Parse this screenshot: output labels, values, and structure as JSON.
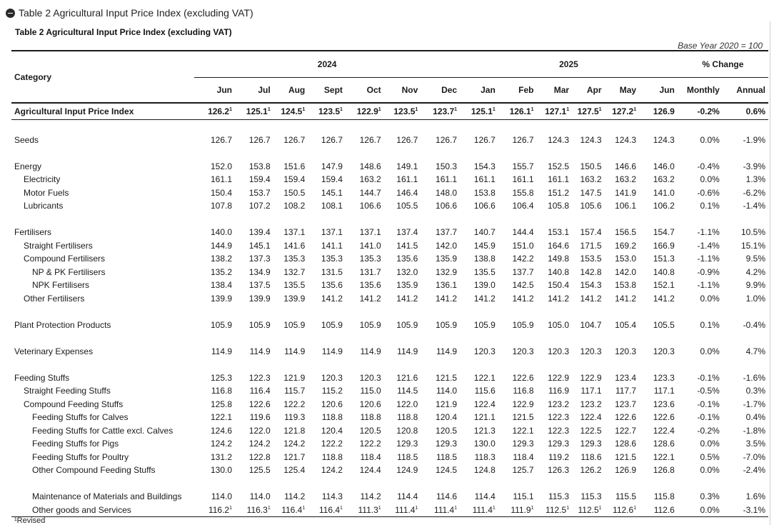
{
  "panel_title": "Table 2 Agricultural Input Price Index (excluding VAT)",
  "table_title": "Table 2 Agricultural Input Price Index (excluding VAT)",
  "base_year": "Base Year 2020 = 100",
  "header": {
    "category": "Category",
    "year_2024": "2024",
    "year_2025": "2025",
    "pct_change": "% Change",
    "months": [
      "Jun",
      "Jul",
      "Aug",
      "Sept",
      "Oct",
      "Nov",
      "Dec",
      "Jan",
      "Feb",
      "Mar",
      "Apr",
      "May",
      "Jun"
    ],
    "monthly": "Monthly",
    "annual": "Annual"
  },
  "rows": [
    {
      "label": "Agricultural Input Price Index",
      "level": 0,
      "type": "top",
      "values": [
        "126.2¹",
        "125.1¹",
        "124.5¹",
        "123.5¹",
        "122.9¹",
        "123.5¹",
        "123.7¹",
        "125.1¹",
        "126.1¹",
        "127.1¹",
        "127.5¹",
        "127.2¹",
        "126.9"
      ],
      "monthly": "-0.2%",
      "annual": "0.6%"
    },
    {
      "type": "gap"
    },
    {
      "label": "Seeds",
      "level": 0,
      "values": [
        "126.7",
        "126.7",
        "126.7",
        "126.7",
        "126.7",
        "126.7",
        "126.7",
        "126.7",
        "126.7",
        "124.3",
        "124.3",
        "124.3",
        "124.3"
      ],
      "monthly": "0.0%",
      "annual": "-1.9%"
    },
    {
      "type": "gap"
    },
    {
      "label": "Energy",
      "level": 0,
      "values": [
        "152.0",
        "153.8",
        "151.6",
        "147.9",
        "148.6",
        "149.1",
        "150.3",
        "154.3",
        "155.7",
        "152.5",
        "150.5",
        "146.6",
        "146.0"
      ],
      "monthly": "-0.4%",
      "annual": "-3.9%"
    },
    {
      "label": "Electricity",
      "level": 1,
      "values": [
        "161.1",
        "159.4",
        "159.4",
        "159.4",
        "163.2",
        "161.1",
        "161.1",
        "161.1",
        "161.1",
        "161.1",
        "163.2",
        "163.2",
        "163.2"
      ],
      "monthly": "0.0%",
      "annual": "1.3%"
    },
    {
      "label": "Motor Fuels",
      "level": 1,
      "values": [
        "150.4",
        "153.7",
        "150.5",
        "145.1",
        "144.7",
        "146.4",
        "148.0",
        "153.8",
        "155.8",
        "151.2",
        "147.5",
        "141.9",
        "141.0"
      ],
      "monthly": "-0.6%",
      "annual": "-6.2%"
    },
    {
      "label": "Lubricants",
      "level": 1,
      "values": [
        "107.8",
        "107.2",
        "108.2",
        "108.1",
        "106.6",
        "105.5",
        "106.6",
        "106.6",
        "106.4",
        "105.8",
        "105.6",
        "106.1",
        "106.2"
      ],
      "monthly": "0.1%",
      "annual": "-1.4%"
    },
    {
      "type": "gap"
    },
    {
      "label": "Fertilisers",
      "level": 0,
      "values": [
        "140.0",
        "139.4",
        "137.1",
        "137.1",
        "137.1",
        "137.4",
        "137.7",
        "140.7",
        "144.4",
        "153.1",
        "157.4",
        "156.5",
        "154.7"
      ],
      "monthly": "-1.1%",
      "annual": "10.5%"
    },
    {
      "label": "Straight Fertilisers",
      "level": 1,
      "values": [
        "144.9",
        "145.1",
        "141.6",
        "141.1",
        "141.0",
        "141.5",
        "142.0",
        "145.9",
        "151.0",
        "164.6",
        "171.5",
        "169.2",
        "166.9"
      ],
      "monthly": "-1.4%",
      "annual": "15.1%"
    },
    {
      "label": "Compound Fertilisers",
      "level": 1,
      "values": [
        "138.2",
        "137.3",
        "135.3",
        "135.3",
        "135.3",
        "135.6",
        "135.9",
        "138.8",
        "142.2",
        "149.8",
        "153.5",
        "153.0",
        "151.3"
      ],
      "monthly": "-1.1%",
      "annual": "9.5%"
    },
    {
      "label": "NP & PK Fertilisers",
      "level": 2,
      "values": [
        "135.2",
        "134.9",
        "132.7",
        "131.5",
        "131.7",
        "132.0",
        "132.9",
        "135.5",
        "137.7",
        "140.8",
        "142.8",
        "142.0",
        "140.8"
      ],
      "monthly": "-0.9%",
      "annual": "4.2%"
    },
    {
      "label": "NPK Fertilisers",
      "level": 2,
      "values": [
        "138.4",
        "137.5",
        "135.5",
        "135.6",
        "135.6",
        "135.9",
        "136.1",
        "139.0",
        "142.5",
        "150.4",
        "154.3",
        "153.8",
        "152.1"
      ],
      "monthly": "-1.1%",
      "annual": "9.9%"
    },
    {
      "label": "Other Fertilisers",
      "level": 1,
      "values": [
        "139.9",
        "139.9",
        "139.9",
        "141.2",
        "141.2",
        "141.2",
        "141.2",
        "141.2",
        "141.2",
        "141.2",
        "141.2",
        "141.2",
        "141.2"
      ],
      "monthly": "0.0%",
      "annual": "1.0%"
    },
    {
      "type": "gap"
    },
    {
      "label": "Plant Protection Products",
      "level": 0,
      "values": [
        "105.9",
        "105.9",
        "105.9",
        "105.9",
        "105.9",
        "105.9",
        "105.9",
        "105.9",
        "105.9",
        "105.0",
        "104.7",
        "105.4",
        "105.5"
      ],
      "monthly": "0.1%",
      "annual": "-0.4%"
    },
    {
      "type": "gap"
    },
    {
      "label": "Veterinary Expenses",
      "level": 0,
      "values": [
        "114.9",
        "114.9",
        "114.9",
        "114.9",
        "114.9",
        "114.9",
        "114.9",
        "120.3",
        "120.3",
        "120.3",
        "120.3",
        "120.3",
        "120.3"
      ],
      "monthly": "0.0%",
      "annual": "4.7%"
    },
    {
      "type": "gap"
    },
    {
      "label": "Feeding Stuffs",
      "level": 0,
      "values": [
        "125.3",
        "122.3",
        "121.9",
        "120.3",
        "120.3",
        "121.6",
        "121.5",
        "122.1",
        "122.6",
        "122.9",
        "122.9",
        "123.4",
        "123.3"
      ],
      "monthly": "-0.1%",
      "annual": "-1.6%"
    },
    {
      "label": "Straight Feeding Stuffs",
      "level": 1,
      "values": [
        "116.8",
        "116.4",
        "115.7",
        "115.2",
        "115.0",
        "114.5",
        "114.0",
        "115.6",
        "116.8",
        "116.9",
        "117.1",
        "117.7",
        "117.1"
      ],
      "monthly": "-0.5%",
      "annual": "0.3%"
    },
    {
      "label": "Compound Feeding Stuffs",
      "level": 1,
      "values": [
        "125.8",
        "122.6",
        "122.2",
        "120.6",
        "120.6",
        "122.0",
        "121.9",
        "122.4",
        "122.9",
        "123.2",
        "123.2",
        "123.7",
        "123.6"
      ],
      "monthly": "-0.1%",
      "annual": "-1.7%"
    },
    {
      "label": "Feeding Stuffs for Calves",
      "level": 2,
      "values": [
        "122.1",
        "119.6",
        "119.3",
        "118.8",
        "118.8",
        "118.8",
        "120.4",
        "121.1",
        "121.5",
        "122.3",
        "122.4",
        "122.6",
        "122.6"
      ],
      "monthly": "-0.1%",
      "annual": "0.4%"
    },
    {
      "label": "Feeding Stuffs for Cattle excl. Calves",
      "level": 2,
      "values": [
        "124.6",
        "122.0",
        "121.8",
        "120.4",
        "120.5",
        "120.8",
        "120.5",
        "121.3",
        "122.1",
        "122.3",
        "122.5",
        "122.7",
        "122.4"
      ],
      "monthly": "-0.2%",
      "annual": "-1.8%"
    },
    {
      "label": "Feeding Stuffs for Pigs",
      "level": 2,
      "values": [
        "124.2",
        "124.2",
        "124.2",
        "122.2",
        "122.2",
        "129.3",
        "129.3",
        "130.0",
        "129.3",
        "129.3",
        "129.3",
        "128.6",
        "128.6"
      ],
      "monthly": "0.0%",
      "annual": "3.5%"
    },
    {
      "label": "Feeding Stuffs for Poultry",
      "level": 2,
      "values": [
        "131.2",
        "122.8",
        "121.7",
        "118.8",
        "118.4",
        "118.5",
        "118.5",
        "118.3",
        "118.4",
        "119.2",
        "118.6",
        "121.5",
        "122.1"
      ],
      "monthly": "0.5%",
      "annual": "-7.0%"
    },
    {
      "label": "Other Compound Feeding Stuffs",
      "level": 2,
      "values": [
        "130.0",
        "125.5",
        "125.4",
        "124.2",
        "124.4",
        "124.9",
        "124.5",
        "124.8",
        "125.7",
        "126.3",
        "126.2",
        "126.9",
        "126.8"
      ],
      "monthly": "0.0%",
      "annual": "-2.4%"
    },
    {
      "type": "gap"
    },
    {
      "label": "Maintenance of Materials and Buildings",
      "level": 2,
      "values": [
        "114.0",
        "114.0",
        "114.2",
        "114.3",
        "114.2",
        "114.4",
        "114.6",
        "114.4",
        "115.1",
        "115.3",
        "115.3",
        "115.5",
        "115.8"
      ],
      "monthly": "0.3%",
      "annual": "1.6%"
    },
    {
      "label": "Other goods and Services",
      "level": 2,
      "last": true,
      "values": [
        "116.2¹",
        "116.3¹",
        "116.4¹",
        "116.4¹",
        "111.3¹",
        "111.4¹",
        "111.4¹",
        "111.4¹",
        "111.9¹",
        "112.5¹",
        "112.5¹",
        "112.6¹",
        "112.6"
      ],
      "monthly": "0.0%",
      "annual": "-3.1%"
    }
  ],
  "footnote": "¹Revised"
}
